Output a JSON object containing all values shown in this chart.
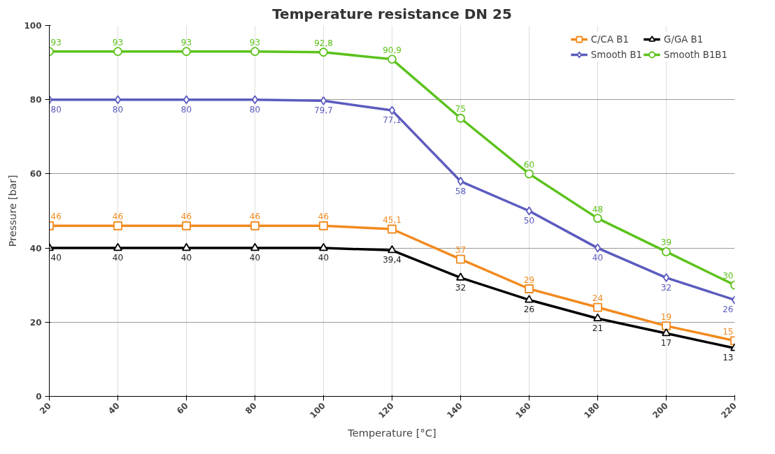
{
  "chart_data": {
    "type": "line",
    "title": "Temperature resistance DN 25",
    "xlabel": "Temperature [°C]",
    "ylabel": "Pressure [bar]",
    "x": [
      20,
      40,
      60,
      80,
      100,
      120,
      140,
      160,
      180,
      200,
      220
    ],
    "xlim": [
      20,
      220
    ],
    "xticks": [
      20,
      40,
      60,
      80,
      100,
      120,
      140,
      160,
      180,
      200,
      220
    ],
    "ylim": [
      0,
      100
    ],
    "yticks": [
      0,
      20,
      40,
      60,
      80,
      100
    ],
    "grid": true,
    "legend": "top right",
    "series": [
      {
        "name": "C/CA B1",
        "color": "#f28a1e",
        "marker": "square",
        "values": [
          46,
          46,
          46,
          46,
          46,
          45.1,
          37,
          29,
          24,
          19,
          15
        ],
        "value_labels": [
          "46",
          "46",
          "46",
          "46",
          "46",
          "45,1",
          "37",
          "29",
          "24",
          "19",
          "15"
        ]
      },
      {
        "name": "G/GA B1",
        "color": "#000000",
        "marker": "triangle",
        "values": [
          40,
          40,
          40,
          40,
          40,
          39.4,
          32,
          26,
          21,
          17,
          13
        ],
        "value_labels": [
          "40",
          "40",
          "40",
          "40",
          "40",
          "39,4",
          "32",
          "26",
          "21",
          "17",
          "13"
        ]
      },
      {
        "name": "Smooth B1",
        "color": "#5b5bbf",
        "marker": "diamond",
        "values": [
          80,
          80,
          80,
          80,
          79.7,
          77.1,
          58,
          50,
          40,
          32,
          26
        ],
        "value_labels": [
          "80",
          "80",
          "80",
          "80",
          "79,7",
          "77,1",
          "58",
          "50",
          "40",
          "32",
          "26"
        ]
      },
      {
        "name": "Smooth B1B1",
        "color": "#5cc21c",
        "marker": "circle",
        "values": [
          93,
          93,
          93,
          93,
          92.8,
          90.9,
          75,
          60,
          48,
          39,
          30
        ],
        "value_labels": [
          "93",
          "93",
          "93",
          "93",
          "92,8",
          "90,9",
          "75",
          "60",
          "48",
          "39",
          "30"
        ]
      }
    ]
  }
}
